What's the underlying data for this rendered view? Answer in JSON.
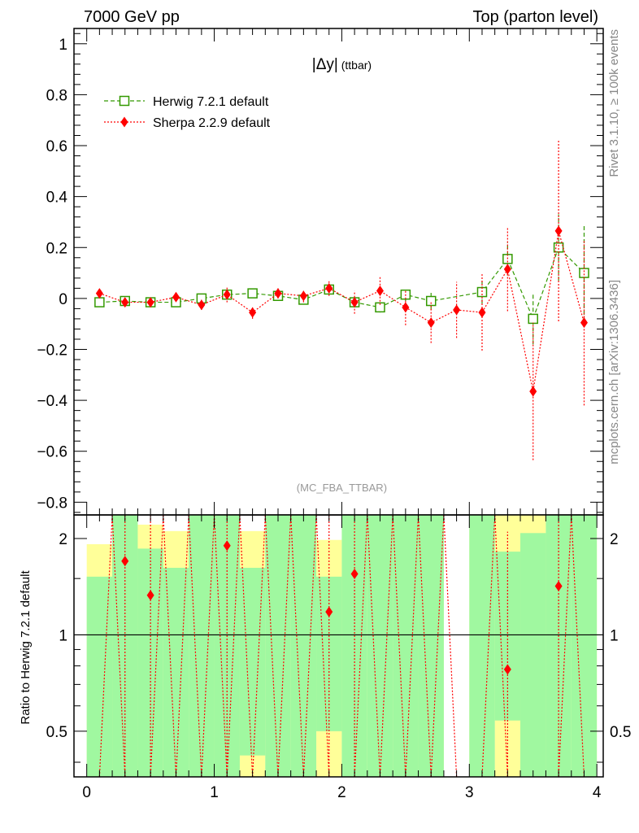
{
  "header": {
    "left": "7000 GeV pp",
    "right": "Top (parton level)"
  },
  "side_labels": {
    "rivet": "Rivet 3.1.10, ≥ 100k events",
    "source": "mcplots.cern.ch [arXiv:1306.3436]"
  },
  "colors": {
    "herwig": "#339900",
    "sherpa": "#ff0000",
    "band_inner": "#a0f8a0",
    "band_outer": "#ffff99"
  },
  "chart_data": [
    {
      "type": "scatter",
      "title": "|Δy|",
      "title_suffix": "(ttbar)",
      "watermark": "(MC_FBA_TTBAR)",
      "xlim": [
        -0.1,
        4.05
      ],
      "ylim": [
        -0.85,
        1.06
      ],
      "yticks": [
        -0.8,
        -0.6,
        -0.4,
        -0.2,
        0,
        0.2,
        0.4,
        0.6,
        0.8,
        1
      ],
      "ytick_labels": [
        "−0.8",
        "−0.6",
        "−0.4",
        "−0.2",
        "0",
        "0.2",
        "0.4",
        "0.6",
        "0.8",
        "1"
      ],
      "legend_position": "top-left",
      "x": [
        0.1,
        0.3,
        0.5,
        0.7,
        0.9,
        1.1,
        1.3,
        1.5,
        1.7,
        1.9,
        2.1,
        2.3,
        2.5,
        2.7,
        2.9,
        3.1,
        3.3,
        3.5,
        3.7,
        3.9
      ],
      "series": [
        {
          "name": "Herwig 7.2.1 default",
          "marker": "open-square",
          "line": "dashed",
          "y": [
            -0.015,
            -0.01,
            -0.015,
            -0.015,
            0.0,
            0.015,
            0.02,
            0.01,
            -0.005,
            0.035,
            -0.015,
            -0.035,
            0.015,
            -0.01,
            null,
            0.025,
            0.155,
            -0.08,
            0.2,
            0.1
          ],
          "err": [
            0.01,
            0.01,
            0.01,
            0.01,
            0.01,
            0.02,
            0.015,
            0.02,
            0.015,
            0.02,
            0.02,
            0.02,
            0.025,
            0.035,
            null,
            0.045,
            0.065,
            0.1,
            0.13,
            0.19
          ]
        },
        {
          "name": "Sherpa 2.2.9 default",
          "marker": "filled-diamond",
          "line": "dotted",
          "y": [
            0.02,
            -0.015,
            -0.015,
            0.005,
            -0.025,
            0.015,
            -0.055,
            0.02,
            0.01,
            0.04,
            -0.015,
            0.03,
            -0.035,
            -0.095,
            -0.045,
            -0.055,
            0.115,
            -0.365,
            0.265,
            -0.095
          ],
          "err": [
            0.015,
            0.015,
            0.01,
            0.015,
            0.02,
            0.03,
            0.025,
            0.02,
            0.025,
            0.03,
            0.045,
            0.055,
            0.07,
            0.08,
            0.11,
            0.15,
            0.165,
            0.27,
            0.355,
            0.325
          ]
        }
      ]
    },
    {
      "type": "scatter",
      "ylabel": "Ratio to Herwig 7.2.1 default",
      "xlim": [
        -0.1,
        4.05
      ],
      "ylim": [
        0.36,
        2.37
      ],
      "y_scale": "log",
      "xticks": [
        0,
        1,
        2,
        3,
        4
      ],
      "xtick_labels": [
        "0",
        "1",
        "2",
        "3",
        "4"
      ],
      "yticks": [
        0.5,
        1,
        2
      ],
      "ytick_labels": [
        "0.5",
        "1",
        "2"
      ],
      "reference_line": 1,
      "bins": [
        [
          0.0,
          0.2
        ],
        [
          0.2,
          0.4
        ],
        [
          0.4,
          0.6
        ],
        [
          0.6,
          0.8
        ],
        [
          0.8,
          1.0
        ],
        [
          1.0,
          1.2
        ],
        [
          1.2,
          1.4
        ],
        [
          1.4,
          1.6
        ],
        [
          1.6,
          1.8
        ],
        [
          1.8,
          2.0
        ],
        [
          2.0,
          2.2
        ],
        [
          2.2,
          2.4
        ],
        [
          2.4,
          2.6
        ],
        [
          2.6,
          2.8
        ],
        [
          2.8,
          3.0
        ],
        [
          3.0,
          3.2
        ],
        [
          3.2,
          3.4
        ],
        [
          3.4,
          3.6
        ],
        [
          3.6,
          3.8
        ],
        [
          3.8,
          4.0
        ]
      ],
      "band_inner": [
        [
          0.36,
          1.52
        ],
        [
          0.36,
          2.37
        ],
        [
          0.36,
          1.86
        ],
        [
          0.36,
          1.62
        ],
        [
          0.36,
          2.37
        ],
        [
          0.36,
          2.37
        ],
        [
          0.42,
          1.62
        ],
        [
          0.36,
          2.37
        ],
        [
          0.36,
          2.37
        ],
        [
          0.5,
          1.52
        ],
        [
          0.36,
          2.37
        ],
        [
          0.36,
          2.37
        ],
        [
          0.36,
          2.37
        ],
        [
          0.36,
          2.37
        ],
        null,
        [
          0.36,
          2.37
        ],
        [
          0.54,
          1.82
        ],
        [
          0.36,
          2.08
        ],
        [
          0.36,
          2.37
        ],
        [
          0.36,
          2.37
        ]
      ],
      "band_outer": [
        [
          0.36,
          1.92
        ],
        [
          0.36,
          2.37
        ],
        [
          0.36,
          2.21
        ],
        [
          0.36,
          2.11
        ],
        [
          0.36,
          2.37
        ],
        [
          0.36,
          2.37
        ],
        [
          0.36,
          2.11
        ],
        [
          0.36,
          2.37
        ],
        [
          0.36,
          2.37
        ],
        [
          0.36,
          1.98
        ],
        [
          0.36,
          2.37
        ],
        [
          0.36,
          2.25
        ],
        [
          0.36,
          2.37
        ],
        [
          0.36,
          2.37
        ],
        null,
        [
          0.36,
          2.37
        ],
        [
          0.36,
          2.37
        ],
        [
          0.36,
          2.37
        ],
        [
          0.36,
          2.37
        ],
        [
          0.36,
          2.2
        ]
      ],
      "series": [
        {
          "name": "Sherpa 2.2.9 default",
          "marker": "filled-diamond",
          "line": "dotted",
          "y": [
            null,
            1.7,
            1.33,
            null,
            null,
            1.9,
            null,
            null,
            null,
            1.18,
            1.55,
            null,
            null,
            null,
            null,
            null,
            0.78,
            null,
            1.42,
            null
          ],
          "err_lo": [
            null,
            0.36,
            0.36,
            null,
            null,
            0.36,
            null,
            null,
            null,
            0.36,
            0.36,
            null,
            null,
            null,
            null,
            null,
            0.36,
            null,
            0.36,
            null
          ],
          "err_hi": [
            null,
            2.37,
            2.37,
            null,
            null,
            2.37,
            null,
            null,
            null,
            2.37,
            2.37,
            null,
            null,
            null,
            null,
            null,
            2.1,
            null,
            2.37,
            null
          ],
          "offscale_lines": [
            [
              0.1,
              0.3
            ],
            [
              0.5,
              0.7
            ],
            [
              0.7,
              0.9
            ],
            [
              0.9,
              1.1
            ],
            [
              1.1,
              1.3
            ],
            [
              1.3,
              1.5
            ],
            [
              1.5,
              1.7
            ],
            [
              1.7,
              1.9
            ],
            [
              2.1,
              2.3
            ],
            [
              2.3,
              2.5
            ],
            [
              2.5,
              2.7
            ],
            [
              2.7,
              2.9
            ],
            [
              3.1,
              3.3
            ],
            [
              3.7,
              3.9
            ]
          ]
        }
      ]
    }
  ]
}
